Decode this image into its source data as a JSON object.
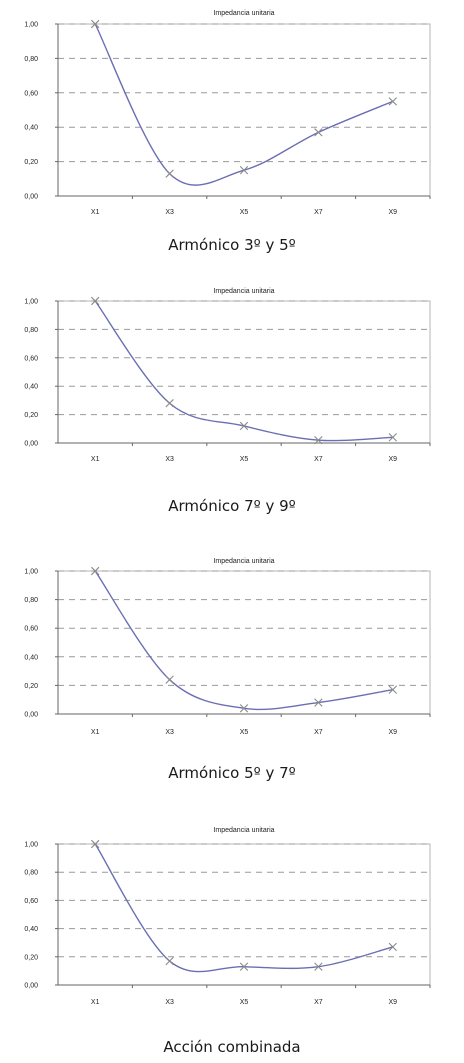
{
  "chart_data": [
    {
      "type": "line",
      "title": "Impedancia unitaria",
      "categories": [
        "X1",
        "X3",
        "X5",
        "X7",
        "X9"
      ],
      "series": [
        {
          "values": [
            1.0,
            0.13,
            0.15,
            0.37,
            0.55
          ]
        }
      ],
      "yticks": [
        "0,00",
        "0,20",
        "0,40",
        "0,60",
        "0,80",
        "1,00"
      ],
      "ylim": [
        0,
        1
      ],
      "grid": true,
      "caption": "Armónico 3º y 5º"
    },
    {
      "type": "line",
      "title": "Impedancia unitaria",
      "categories": [
        "X1",
        "X3",
        "X5",
        "X7",
        "X9"
      ],
      "series": [
        {
          "values": [
            1.0,
            0.28,
            0.12,
            0.02,
            0.04
          ]
        }
      ],
      "yticks": [
        "0,00",
        "0,20",
        "0,40",
        "0,60",
        "0,80",
        "1,00"
      ],
      "ylim": [
        0,
        1
      ],
      "grid": true,
      "caption": "Armónico 7º y 9º"
    },
    {
      "type": "line",
      "title": "Impedancia unitaria",
      "categories": [
        "X1",
        "X3",
        "X5",
        "X7",
        "X9"
      ],
      "series": [
        {
          "values": [
            1.0,
            0.24,
            0.04,
            0.08,
            0.17
          ]
        }
      ],
      "yticks": [
        "0,00",
        "0,20",
        "0,40",
        "0,60",
        "0,80",
        "1,00"
      ],
      "ylim": [
        0,
        1
      ],
      "grid": true,
      "caption": "Armónico 5º y 7º"
    },
    {
      "type": "line",
      "title": "Impedancia unitaria",
      "categories": [
        "X1",
        "X3",
        "X5",
        "X7",
        "X9"
      ],
      "series": [
        {
          "values": [
            1.0,
            0.17,
            0.13,
            0.13,
            0.27
          ]
        }
      ],
      "yticks": [
        "0,00",
        "0,20",
        "0,40",
        "0,60",
        "0,80",
        "1,00"
      ],
      "ylim": [
        0,
        1
      ],
      "grid": true,
      "caption": "Acción combinada"
    }
  ]
}
